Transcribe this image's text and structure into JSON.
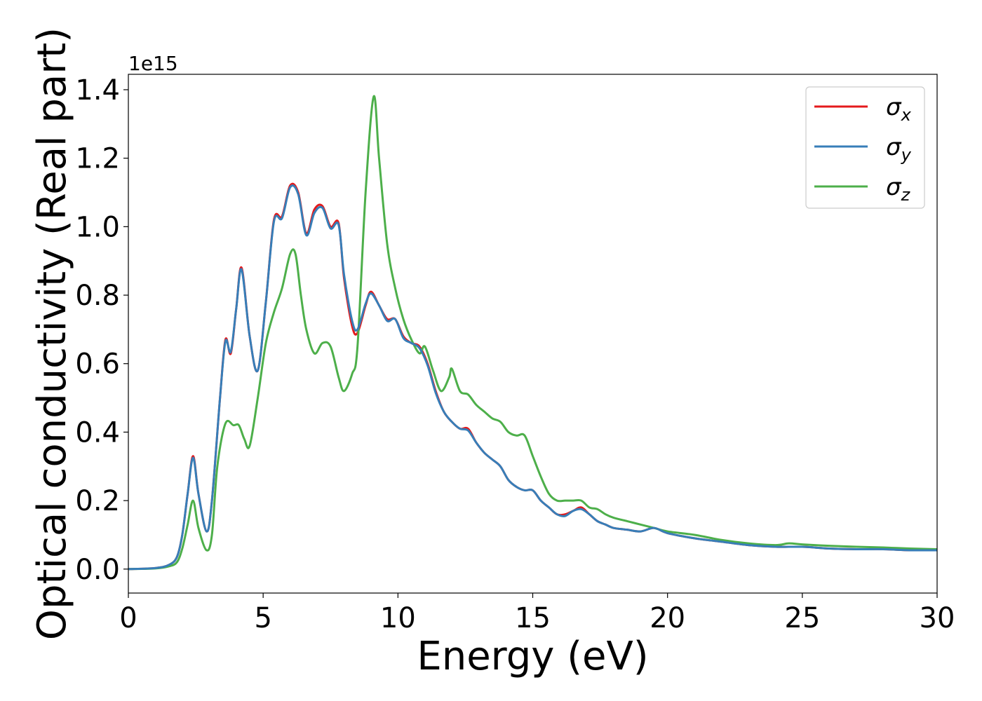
{
  "chart_data": {
    "type": "line",
    "title": "",
    "xlabel": "Energy (eV)",
    "ylabel": "Optical conductivity (Real part)",
    "y_offset_label": "1e15",
    "xlim": [
      0,
      30
    ],
    "ylim": [
      -0.07,
      1.445
    ],
    "x_ticks": [
      0,
      5,
      10,
      15,
      20,
      25,
      30
    ],
    "x_tick_labels": [
      "0",
      "5",
      "10",
      "15",
      "20",
      "25",
      "30"
    ],
    "y_ticks": [
      0.0,
      0.2,
      0.4,
      0.6,
      0.8,
      1.0,
      1.2,
      1.4
    ],
    "y_tick_labels": [
      "0.0",
      "0.2",
      "0.4",
      "0.6",
      "0.8",
      "1.0",
      "1.2",
      "1.4"
    ],
    "grid": false,
    "legend_position": "top-right",
    "series": [
      {
        "name": "σx",
        "symbol": "σ",
        "subscript": "x",
        "color": "#e41a1c",
        "x": [
          0,
          1,
          1.5,
          1.8,
          2.0,
          2.2,
          2.4,
          2.6,
          2.9,
          3.1,
          3.4,
          3.6,
          3.8,
          4.0,
          4.2,
          4.5,
          4.8,
          5.1,
          5.4,
          5.7,
          6.0,
          6.3,
          6.6,
          6.9,
          7.2,
          7.5,
          7.8,
          8.0,
          8.3,
          8.5,
          8.8,
          9.0,
          9.3,
          9.6,
          9.9,
          10.2,
          10.5,
          10.8,
          11.1,
          11.4,
          11.7,
          12.0,
          12.3,
          12.6,
          12.9,
          13.2,
          13.5,
          13.8,
          14.1,
          14.4,
          14.7,
          15.0,
          15.3,
          15.6,
          15.9,
          16.2,
          16.5,
          16.8,
          17.1,
          17.4,
          17.7,
          18.0,
          18.5,
          19.0,
          19.5,
          20.0,
          21.0,
          22.0,
          23.0,
          24.0,
          25.0,
          26.0,
          27.0,
          28.0,
          29.0,
          30.0
        ],
        "values": [
          0.0,
          0.003,
          0.012,
          0.035,
          0.1,
          0.22,
          0.33,
          0.22,
          0.11,
          0.2,
          0.5,
          0.67,
          0.63,
          0.76,
          0.88,
          0.68,
          0.58,
          0.78,
          1.02,
          1.03,
          1.12,
          1.1,
          0.98,
          1.05,
          1.06,
          1.0,
          1.01,
          0.85,
          0.71,
          0.69,
          0.77,
          0.81,
          0.77,
          0.73,
          0.73,
          0.68,
          0.66,
          0.65,
          0.6,
          0.52,
          0.46,
          0.43,
          0.41,
          0.41,
          0.37,
          0.34,
          0.32,
          0.3,
          0.26,
          0.24,
          0.23,
          0.23,
          0.2,
          0.18,
          0.16,
          0.16,
          0.17,
          0.18,
          0.16,
          0.14,
          0.13,
          0.12,
          0.115,
          0.11,
          0.12,
          0.105,
          0.09,
          0.08,
          0.07,
          0.065,
          0.065,
          0.06,
          0.058,
          0.058,
          0.055,
          0.055
        ]
      },
      {
        "name": "σy",
        "symbol": "σ",
        "subscript": "y",
        "color": "#377eb8",
        "x": [
          0,
          1,
          1.5,
          1.8,
          2.0,
          2.2,
          2.4,
          2.6,
          2.9,
          3.1,
          3.4,
          3.6,
          3.8,
          4.0,
          4.2,
          4.5,
          4.8,
          5.1,
          5.4,
          5.7,
          6.0,
          6.3,
          6.6,
          6.9,
          7.2,
          7.5,
          7.8,
          8.0,
          8.3,
          8.5,
          8.8,
          9.0,
          9.3,
          9.6,
          9.9,
          10.2,
          10.5,
          10.8,
          11.1,
          11.4,
          11.7,
          12.0,
          12.3,
          12.6,
          12.9,
          13.2,
          13.5,
          13.8,
          14.1,
          14.4,
          14.7,
          15.0,
          15.3,
          15.6,
          15.9,
          16.2,
          16.5,
          16.8,
          17.1,
          17.4,
          17.7,
          18.0,
          18.5,
          19.0,
          19.5,
          20.0,
          21.0,
          22.0,
          23.0,
          24.0,
          25.0,
          26.0,
          27.0,
          28.0,
          29.0,
          30.0
        ],
        "values": [
          0.0,
          0.003,
          0.012,
          0.035,
          0.1,
          0.22,
          0.325,
          0.22,
          0.11,
          0.2,
          0.5,
          0.665,
          0.635,
          0.76,
          0.875,
          0.68,
          0.58,
          0.78,
          1.015,
          1.025,
          1.115,
          1.095,
          0.975,
          1.04,
          1.055,
          0.995,
          1.005,
          0.86,
          0.725,
          0.7,
          0.775,
          0.805,
          0.77,
          0.725,
          0.73,
          0.675,
          0.66,
          0.645,
          0.595,
          0.515,
          0.46,
          0.43,
          0.41,
          0.405,
          0.37,
          0.34,
          0.32,
          0.3,
          0.26,
          0.24,
          0.23,
          0.23,
          0.2,
          0.18,
          0.16,
          0.155,
          0.17,
          0.175,
          0.16,
          0.14,
          0.13,
          0.12,
          0.115,
          0.11,
          0.12,
          0.105,
          0.09,
          0.08,
          0.07,
          0.065,
          0.065,
          0.06,
          0.058,
          0.058,
          0.055,
          0.055
        ]
      },
      {
        "name": "σz",
        "symbol": "σ",
        "subscript": "z",
        "color": "#4daf4a",
        "x": [
          0,
          1,
          1.5,
          1.8,
          2.0,
          2.2,
          2.4,
          2.6,
          2.9,
          3.1,
          3.3,
          3.6,
          3.9,
          4.1,
          4.3,
          4.5,
          4.8,
          5.1,
          5.4,
          5.7,
          6.0,
          6.2,
          6.4,
          6.6,
          6.9,
          7.2,
          7.5,
          7.8,
          8.0,
          8.3,
          8.5,
          8.8,
          9.1,
          9.3,
          9.6,
          9.9,
          10.2,
          10.5,
          10.8,
          11.0,
          11.3,
          11.6,
          11.9,
          12.0,
          12.3,
          12.6,
          12.9,
          13.2,
          13.5,
          13.8,
          14.1,
          14.4,
          14.7,
          15.0,
          15.3,
          15.6,
          15.9,
          16.2,
          16.5,
          16.8,
          17.1,
          17.4,
          17.7,
          18.0,
          18.5,
          19.0,
          19.5,
          20.0,
          21.0,
          22.0,
          23.0,
          24.0,
          24.5,
          25.0,
          26.0,
          27.0,
          28.0,
          29.0,
          30.0
        ],
        "values": [
          0.0,
          0.002,
          0.008,
          0.02,
          0.06,
          0.13,
          0.2,
          0.12,
          0.055,
          0.1,
          0.3,
          0.425,
          0.42,
          0.42,
          0.38,
          0.36,
          0.5,
          0.66,
          0.75,
          0.82,
          0.92,
          0.92,
          0.8,
          0.7,
          0.63,
          0.66,
          0.65,
          0.56,
          0.52,
          0.57,
          0.65,
          1.1,
          1.38,
          1.2,
          0.95,
          0.82,
          0.73,
          0.67,
          0.63,
          0.65,
          0.58,
          0.52,
          0.56,
          0.585,
          0.52,
          0.51,
          0.48,
          0.46,
          0.44,
          0.43,
          0.4,
          0.39,
          0.39,
          0.33,
          0.27,
          0.22,
          0.2,
          0.2,
          0.2,
          0.2,
          0.18,
          0.175,
          0.16,
          0.15,
          0.14,
          0.13,
          0.12,
          0.11,
          0.1,
          0.085,
          0.075,
          0.07,
          0.075,
          0.072,
          0.068,
          0.065,
          0.063,
          0.06,
          0.058
        ]
      }
    ]
  }
}
